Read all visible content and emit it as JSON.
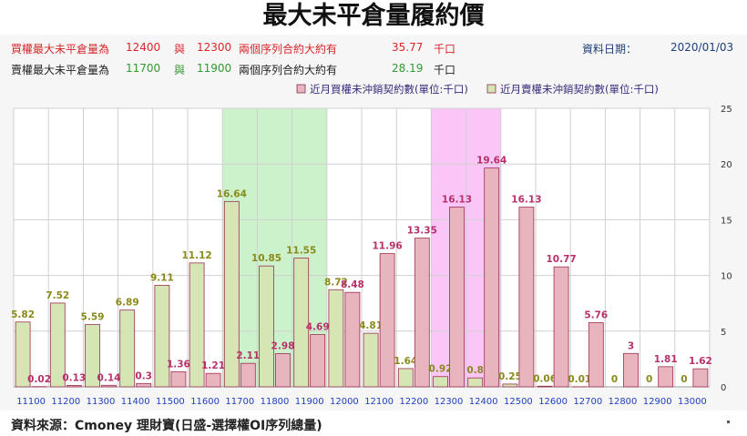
{
  "title": "最大未平倉量履約價",
  "info": {
    "call": {
      "label": "買權最大未平倉量為",
      "strike1": "12400",
      "sep": "與",
      "strike2": "12300",
      "contracts_label": "兩個序列合約大約有",
      "contracts_value": "35.77",
      "unit": "千口"
    },
    "put": {
      "label": "賣權最大未平倉量為",
      "strike1": "11700",
      "sep": "與",
      "strike2": "11900",
      "contracts_label": "兩個序列合約大約有",
      "contracts_value": "28.19",
      "unit": "千口"
    },
    "date_label": "資料日期：",
    "date_value": "2020/01/03"
  },
  "chart_data": {
    "type": "bar",
    "categories": [
      "11100",
      "11200",
      "11300",
      "11400",
      "11500",
      "11600",
      "11700",
      "11800",
      "11900",
      "12000",
      "12100",
      "12200",
      "12300",
      "12400",
      "12500",
      "12600",
      "12700",
      "12800",
      "12900",
      "13000"
    ],
    "series": [
      {
        "name": "近月買權未沖銷契約數(單位:千口)",
        "color": "#e8b4bd",
        "label_color": "#b8306a",
        "values": [
          0.02,
          0.13,
          0.14,
          0.3,
          1.36,
          1.21,
          2.11,
          2.98,
          4.69,
          8.48,
          11.96,
          13.35,
          16.13,
          19.64,
          16.13,
          10.77,
          5.76,
          3,
          1.81,
          1.62
        ]
      },
      {
        "name": "近月賣權未沖銷契約數(單位:千口)",
        "color": "#d6e5b4",
        "label_color": "#8a8a1a",
        "values": [
          5.82,
          7.52,
          5.59,
          6.89,
          9.11,
          11.12,
          16.64,
          10.85,
          11.55,
          8.72,
          4.81,
          1.64,
          0.92,
          0.8,
          0.25,
          0.06,
          0.01,
          0,
          0,
          0
        ]
      }
    ],
    "highlights": [
      {
        "from": "11700",
        "to": "11900",
        "color": "#ccf2cc"
      },
      {
        "from": "12300",
        "to": "12400",
        "color": "#fac6f7"
      }
    ],
    "yticks": [
      0,
      5,
      10,
      15,
      20,
      25
    ],
    "ylim": [
      0,
      25
    ],
    "grid": true,
    "legend": "top-right"
  },
  "footer": "資料來源：Cmoney 理財寶(日盛-選擇權OI序列總量)"
}
